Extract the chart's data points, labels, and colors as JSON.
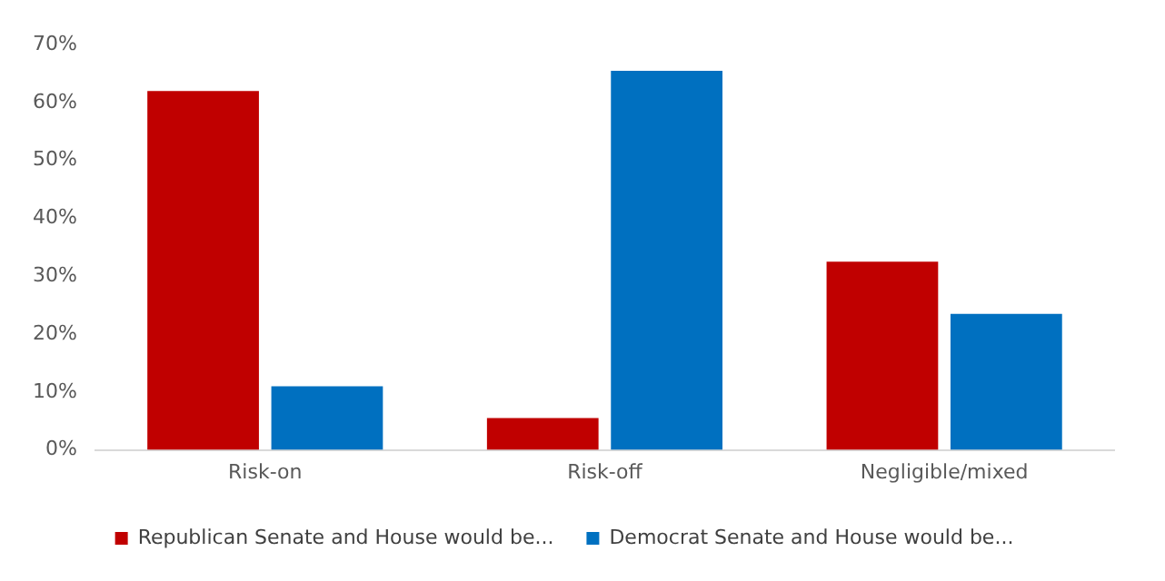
{
  "chart_data": {
    "type": "bar",
    "categories": [
      "Risk-on",
      "Risk-off",
      "Negligible/mixed"
    ],
    "series": [
      {
        "name": "Republican Senate and House would be...",
        "color": "#c00000",
        "values": [
          62,
          5.5,
          32.5
        ]
      },
      {
        "name": "Democrat Senate and House would be...",
        "color": "#0070c0",
        "values": [
          11,
          65.5,
          23.5
        ]
      }
    ],
    "ylim": [
      0,
      70
    ],
    "yticks": [
      {
        "value": 0,
        "label": "0%"
      },
      {
        "value": 10,
        "label": "10%"
      },
      {
        "value": 20,
        "label": "20%"
      },
      {
        "value": 30,
        "label": "30%"
      },
      {
        "value": 40,
        "label": "40%"
      },
      {
        "value": 50,
        "label": "50%"
      },
      {
        "value": 60,
        "label": "60%"
      },
      {
        "value": 70,
        "label": "70%"
      }
    ],
    "grid": false,
    "legend": "bottom"
  }
}
